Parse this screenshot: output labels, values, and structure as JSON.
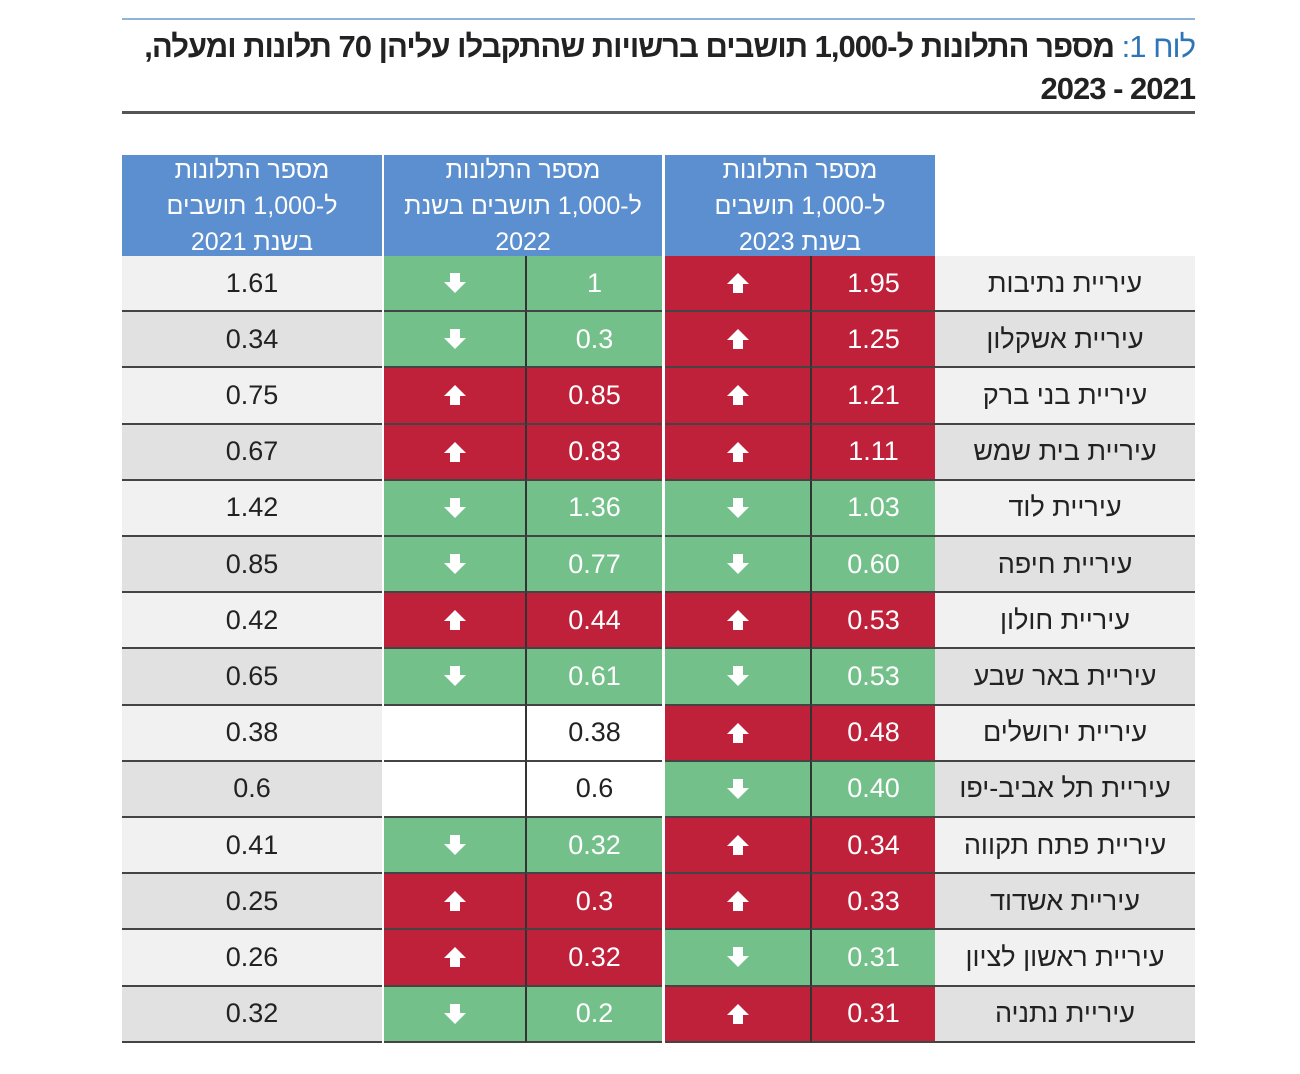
{
  "header": {
    "label": "לוח 1:",
    "title": "מספר התלונות ל-1,000 תושבים ברשויות שהתקבלו עליהן 70 תלונות ומעלה, 2021 - 2023"
  },
  "table": {
    "columns": [
      "מספר התלונות ל-1,000 תושבים בשנת 2023",
      "מספר התלונות ל-1,000 תושבים בשנת 2022",
      "מספר התלונות ל-1,000 תושבים בשנת 2021"
    ],
    "rows": [
      [
        "עיריית נתיבות",
        "1.95",
        "1",
        "1.61"
      ],
      [
        "עיריית אשקלון",
        "1.25",
        "0.3",
        "0.34"
      ],
      [
        "עיריית בני ברק",
        "1.21",
        "0.85",
        "0.75"
      ],
      [
        "עיריית בית שמש",
        "1.11",
        "0.83",
        "0.67"
      ],
      [
        "עיריית לוד",
        "1.03",
        "1.36",
        "1.42"
      ],
      [
        "עיריית חיפה",
        "0.60",
        "0.77",
        "0.85"
      ],
      [
        "עיריית חולון",
        "0.53",
        "0.44",
        "0.42"
      ],
      [
        "עיריית באר שבע",
        "0.53",
        "0.61",
        "0.65"
      ],
      [
        "עיריית ירושלים",
        "0.48",
        "0.38",
        "0.38"
      ],
      [
        "עיריית תל אביב-יפו",
        "0.40",
        "0.6",
        "0.6"
      ],
      [
        "עיריית פתח תקווה",
        "0.34",
        "0.32",
        "0.41"
      ],
      [
        "עיריית אשדוד",
        "0.33",
        "0.3",
        "0.25"
      ],
      [
        "עיריית ראשון לציון",
        "0.31",
        "0.32",
        "0.26"
      ],
      [
        "עיריית נתניה",
        "0.31",
        "0.2",
        "0.32"
      ]
    ]
  }
}
